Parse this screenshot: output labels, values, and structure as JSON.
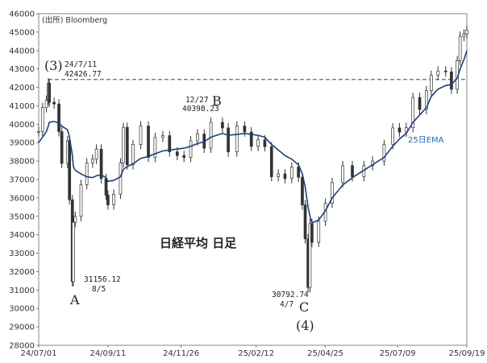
{
  "source": "(出所) Bloomberg",
  "chart_data": {
    "type": "line",
    "title": "日経平均 日足",
    "ylim": [
      28000,
      46000
    ],
    "yticks": [
      28000,
      29000,
      30000,
      31000,
      32000,
      33000,
      34000,
      35000,
      36000,
      37000,
      38000,
      39000,
      40000,
      41000,
      42000,
      43000,
      44000,
      45000,
      46000
    ],
    "x_range": [
      "2024-07-01",
      "2025-09-19"
    ],
    "xticks": [
      "24/07/01",
      "24/09/11",
      "24/11/26",
      "25/02/12",
      "25/04/25",
      "25/07/09",
      "25/09/19"
    ],
    "xtick_dates": [
      "2024-07-01",
      "2024-09-11",
      "2024-11-26",
      "2025-02-12",
      "2025-04-25",
      "2025-07-09",
      "2025-09-19"
    ],
    "reference_line": 42426.77,
    "series": [
      {
        "name": "日経平均",
        "style": "candlestick",
        "x": [
          "2024-07-01",
          "2024-07-05",
          "2024-07-09",
          "2024-07-11",
          "2024-07-12",
          "2024-07-17",
          "2024-07-22",
          "2024-07-25",
          "2024-07-31",
          "2024-08-02",
          "2024-08-05",
          "2024-08-06",
          "2024-08-08",
          "2024-08-14",
          "2024-08-20",
          "2024-08-26",
          "2024-08-30",
          "2024-09-04",
          "2024-09-09",
          "2024-09-11",
          "2024-09-17",
          "2024-09-24",
          "2024-09-27",
          "2024-10-01",
          "2024-10-07",
          "2024-10-15",
          "2024-10-23",
          "2024-10-30",
          "2024-11-07",
          "2024-11-14",
          "2024-11-22",
          "2024-11-29",
          "2024-12-06",
          "2024-12-13",
          "2024-12-20",
          "2024-12-27",
          "2025-01-08",
          "2025-01-14",
          "2025-01-23",
          "2025-01-31",
          "2025-02-07",
          "2025-02-14",
          "2025-02-21",
          "2025-02-28",
          "2025-03-07",
          "2025-03-14",
          "2025-03-21",
          "2025-03-28",
          "2025-04-01",
          "2025-04-04",
          "2025-04-07",
          "2025-04-09",
          "2025-04-11",
          "2025-04-18",
          "2025-04-25",
          "2025-05-02",
          "2025-05-13",
          "2025-05-23",
          "2025-06-04",
          "2025-06-13",
          "2025-06-25",
          "2025-07-04",
          "2025-07-11",
          "2025-07-18",
          "2025-07-25",
          "2025-08-01",
          "2025-08-08",
          "2025-08-13",
          "2025-08-20",
          "2025-08-28",
          "2025-09-03",
          "2025-09-09",
          "2025-09-12",
          "2025-09-16",
          "2025-09-19"
        ],
        "values": [
          39600,
          40900,
          41300,
          42224,
          41190,
          41100,
          39600,
          37870,
          39100,
          35900,
          31458,
          34675,
          35000,
          36720,
          37900,
          38100,
          38650,
          37050,
          36150,
          35620,
          36200,
          37900,
          39830,
          37800,
          38900,
          39900,
          38200,
          39280,
          39380,
          38500,
          38300,
          38200,
          39100,
          39470,
          38700,
          40100,
          39800,
          38500,
          39900,
          39580,
          38800,
          39150,
          38780,
          37150,
          37300,
          37050,
          37680,
          37120,
          35620,
          33780,
          31136,
          34600,
          33590,
          34730,
          35710,
          36830,
          37750,
          37150,
          37750,
          38000,
          38900,
          39800,
          39570,
          39820,
          41450,
          40800,
          41820,
          42650,
          42890,
          42840,
          41900,
          43450,
          44770,
          44900,
          45100
        ]
      },
      {
        "name": "25日EMA",
        "values": [
          39000,
          39300,
          39600,
          39900,
          40100,
          40150,
          40050,
          39900,
          39700,
          39300,
          38300,
          37700,
          37500,
          37300,
          37150,
          37100,
          37200,
          37250,
          37100,
          36900,
          36950,
          37150,
          37550,
          37700,
          37850,
          38150,
          38250,
          38400,
          38550,
          38600,
          38650,
          38700,
          38800,
          38950,
          39050,
          39300,
          39500,
          39400,
          39450,
          39500,
          39450,
          39400,
          39300,
          38900,
          38600,
          38300,
          38100,
          37800,
          37300,
          36600,
          35500,
          35000,
          34650,
          34800,
          35300,
          36000,
          36700,
          37100,
          37500,
          37800,
          38200,
          38800,
          39200,
          39500,
          40100,
          40500,
          40900,
          41500,
          41900,
          42100,
          42150,
          42500,
          43000,
          43500,
          44000
        ]
      }
    ],
    "annotations": [
      {
        "label": "(3)"
      },
      {
        "label": "24/7/11\n42426.77"
      },
      {
        "label": "12/27\n40398.23"
      },
      {
        "label": "B"
      },
      {
        "label": "31156.12\n8/5"
      },
      {
        "label": "A"
      },
      {
        "label": "30792.74\n4/7"
      },
      {
        "label": "C"
      },
      {
        "label": "(4)"
      },
      {
        "label": "25日EMA"
      }
    ]
  }
}
